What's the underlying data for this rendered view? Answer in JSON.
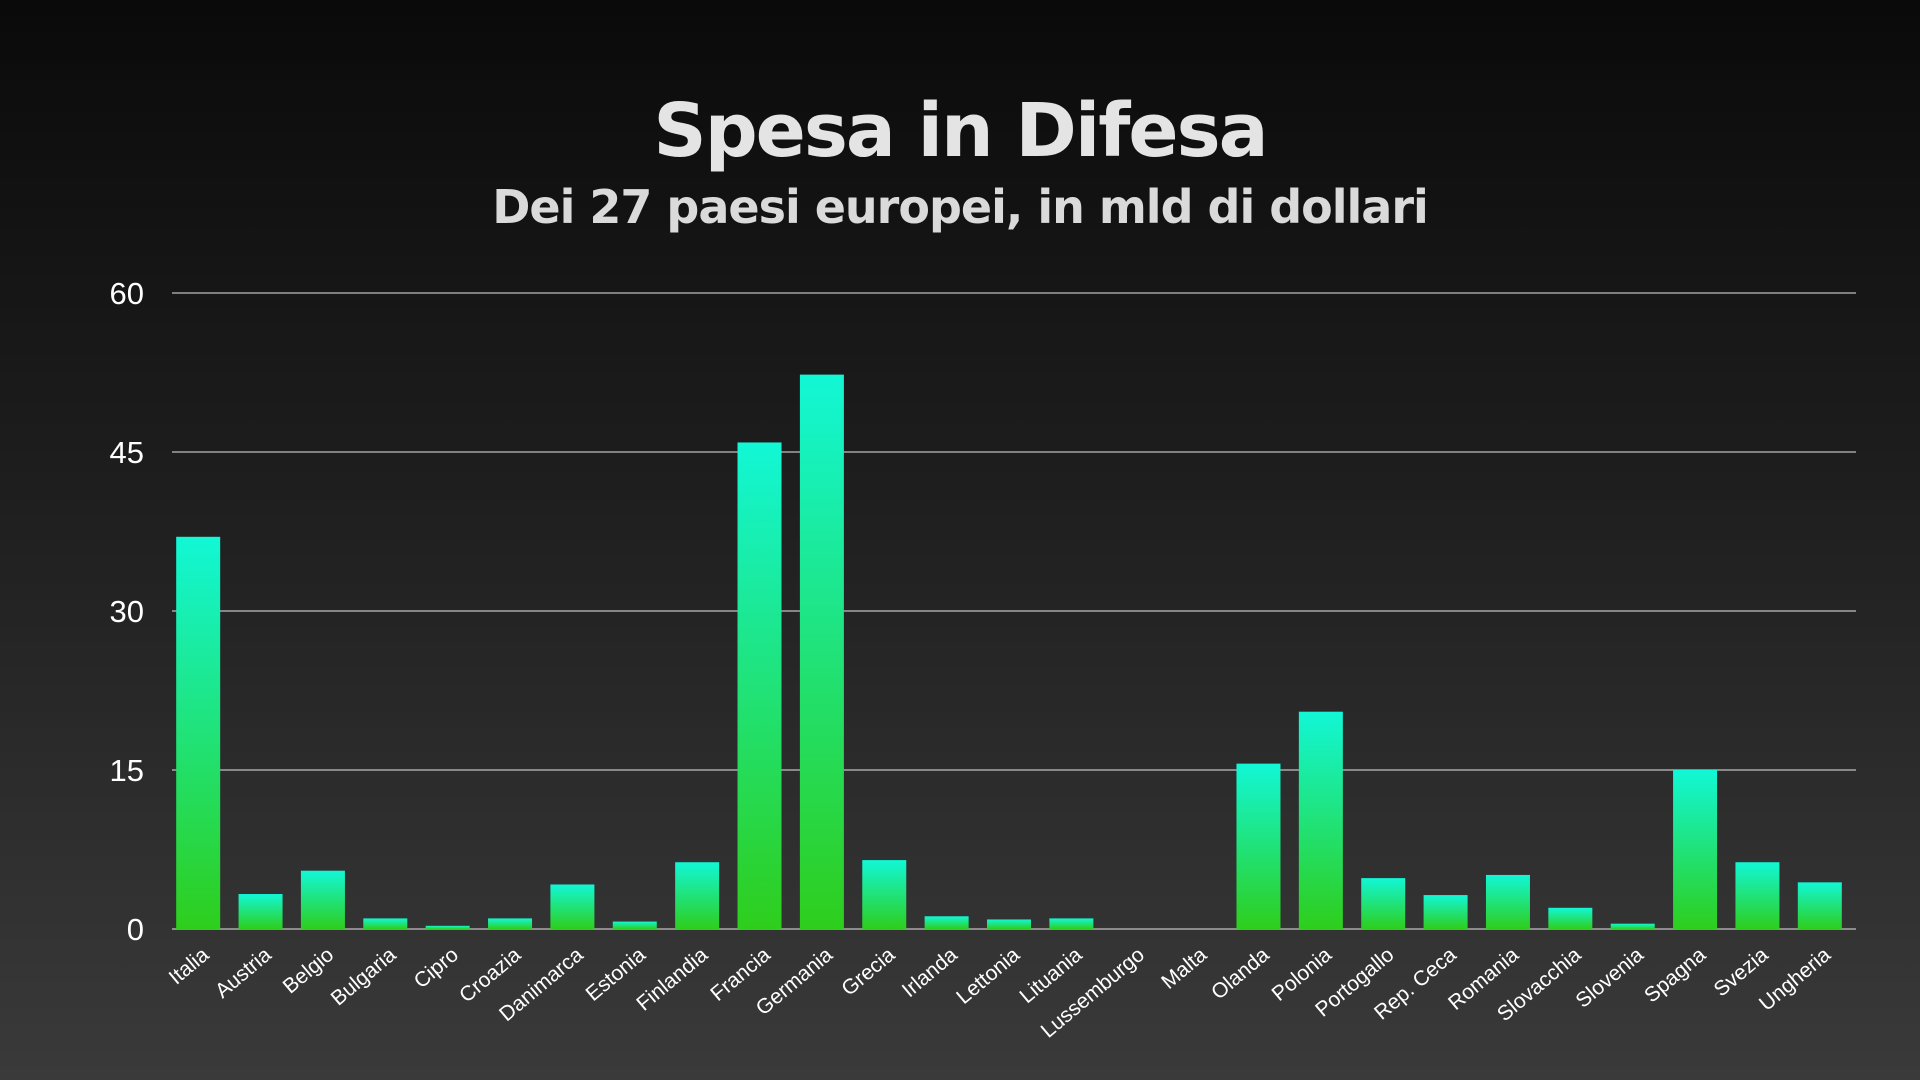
{
  "header": {
    "title": "Spesa in Difesa",
    "subtitle": "Dei 27 paesi europei, in mld di dollari"
  },
  "colors": {
    "bar_top": "#12f7d6",
    "bar_bottom": "#2ece1c",
    "grid": "#e6e6e6",
    "text": "#ffffff"
  },
  "chart_data": {
    "type": "bar",
    "title": "Spesa in Difesa",
    "subtitle": "Dei 27 paesi europei, in mld di dollari",
    "xlabel": "",
    "ylabel": "",
    "ylim": [
      0,
      60
    ],
    "yticks": [
      0,
      15,
      30,
      45,
      60
    ],
    "grid": true,
    "categories": [
      "Italia",
      "Austria",
      "Belgio",
      "Bulgaria",
      "Cipro",
      "Croazia",
      "Danimarca",
      "Estonia",
      "Finlandia",
      "Francia",
      "Germania",
      "Grecia",
      "Irlanda",
      "Lettonia",
      "Lituania",
      "Lussemburgo",
      "Malta",
      "Olanda",
      "Polonia",
      "Portogallo",
      "Rep. Ceca",
      "Romania",
      "Slovacchia",
      "Slovenia",
      "Spagna",
      "Svezia",
      "Ungheria"
    ],
    "values": [
      37.0,
      3.3,
      5.5,
      1.0,
      0.3,
      1.0,
      4.2,
      0.7,
      6.3,
      45.9,
      52.3,
      6.5,
      1.2,
      0.9,
      1.0,
      0.0,
      0.0,
      15.6,
      20.5,
      4.8,
      3.2,
      5.1,
      2.0,
      0.5,
      15.0,
      6.3,
      4.4
    ]
  }
}
